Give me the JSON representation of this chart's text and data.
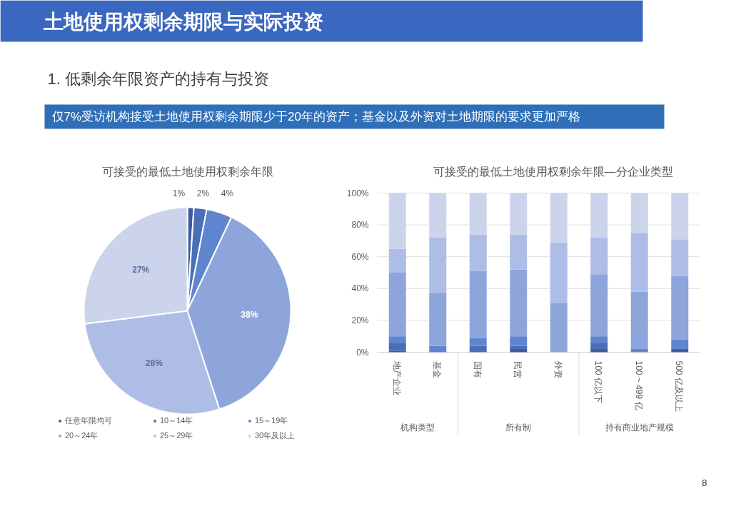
{
  "chart_data": [
    {
      "type": "pie",
      "title": "可接受的最低土地使用权剩余年限",
      "annotations": [
        "土地使用权剩余期限与实际投资",
        "1. 低剩余年限资产的持有与投资",
        "仅7%受访机构接受土地使用权剩余期限少于20年的资产；基金以及外资对土地期限的要求更加严格",
        "8"
      ],
      "categories": [
        "任意年限均可",
        "10～14年",
        "15～19年",
        "20～24年",
        "25～29年",
        "30年及以上"
      ],
      "values": [
        1,
        2,
        4,
        38,
        28,
        27
      ],
      "colors": [
        "#3d5c9e",
        "#4a6fb8",
        "#5f85cf",
        "#8ea5dc",
        "#aebde6",
        "#ccd4ec"
      ],
      "value_labels": [
        "1%",
        "2%",
        "4%",
        "38%",
        "28%",
        "27%"
      ],
      "legend": "bottom"
    },
    {
      "type": "bar",
      "title": "可接受的最低土地使用权剩余年限—分企业类型",
      "stacked": true,
      "categories": [
        "地产企业",
        "基金",
        "国有",
        "民营",
        "外资",
        "100 亿以下",
        "100 ~ 499 亿",
        "500 亿及以上"
      ],
      "annotations": [
        "机构类型",
        "所有制",
        "持有商业地产规模"
      ],
      "series": [
        {
          "color": "#3d5c9e",
          "values": [
            1,
            0,
            0,
            2,
            0,
            2,
            0,
            2
          ]
        },
        {
          "color": "#4a6fb8",
          "values": [
            5,
            0,
            4,
            2,
            0,
            4,
            0,
            0
          ]
        },
        {
          "color": "#5f85cf",
          "values": [
            4,
            4,
            5,
            6,
            0,
            4,
            2,
            6
          ]
        },
        {
          "color": "#8ea5dc",
          "values": [
            40,
            33,
            42,
            42,
            31,
            39,
            36,
            40
          ]
        },
        {
          "color": "#aebde6",
          "values": [
            15,
            35,
            23,
            22,
            38,
            23,
            37,
            23
          ]
        },
        {
          "color": "#ccd4ec",
          "values": [
            35,
            28,
            26,
            26,
            31,
            28,
            25,
            29
          ]
        }
      ],
      "ylim": [
        0,
        100
      ],
      "yticks": [
        {
          "value": 0,
          "label": "0%"
        },
        {
          "value": 20,
          "label": "20%"
        },
        {
          "value": 40,
          "label": "40%"
        },
        {
          "value": 60,
          "label": "60%"
        },
        {
          "value": 80,
          "label": "80%"
        },
        {
          "value": 100,
          "label": "100%"
        }
      ],
      "grid": "y"
    }
  ]
}
